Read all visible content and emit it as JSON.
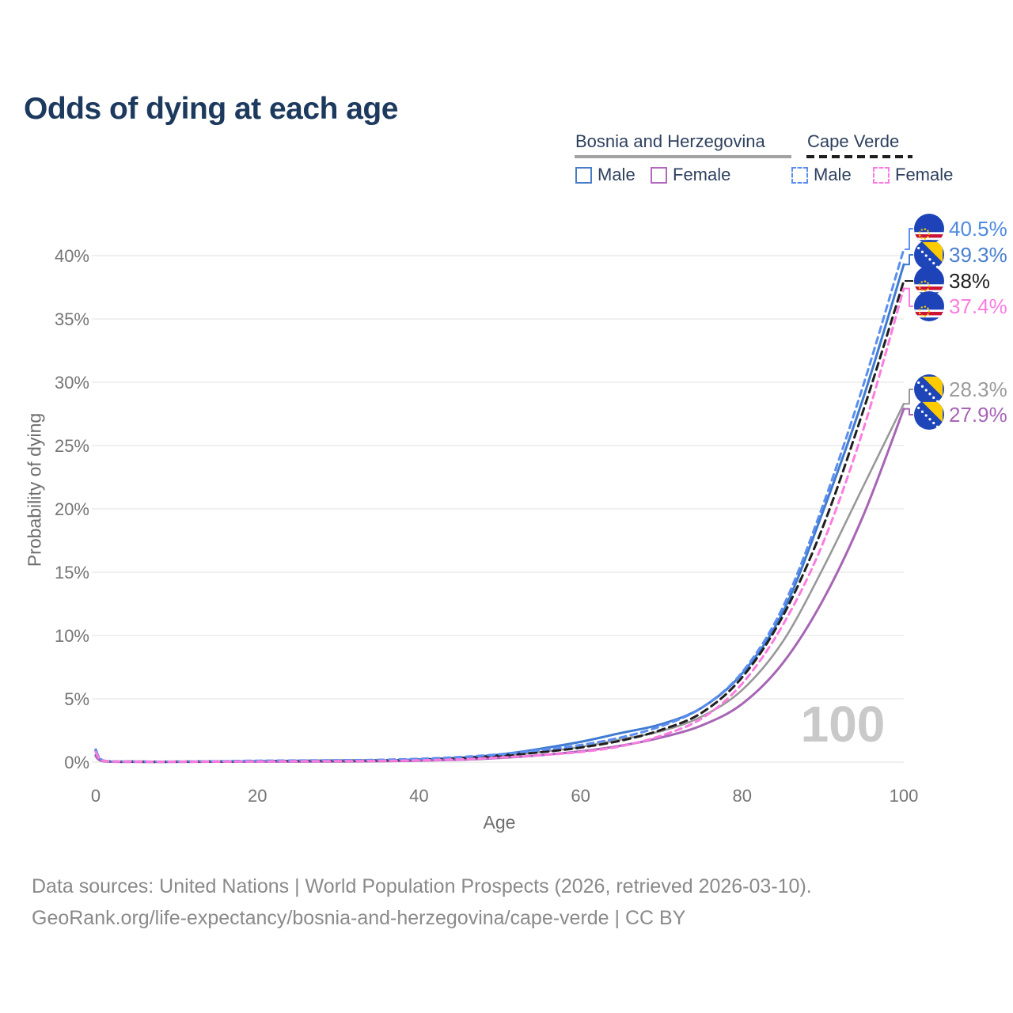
{
  "title": "Odds of dying at each age",
  "legend": {
    "countries": [
      {
        "name": "Bosnia and Herzegovina",
        "line_style": "solid",
        "line_color": "#a3a3a3",
        "items": [
          {
            "label": "Male",
            "swatch_color": "#4a7cc7",
            "swatch_style": "solid"
          },
          {
            "label": "Female",
            "swatch_color": "#b168bd",
            "swatch_style": "solid"
          }
        ]
      },
      {
        "name": "Cape Verde",
        "line_style": "dashed",
        "line_color": "#1f1f1f",
        "items": [
          {
            "label": "Male",
            "swatch_color": "#5b8ef0",
            "swatch_style": "dashed"
          },
          {
            "label": "Female",
            "swatch_color": "#fb7ce0",
            "swatch_style": "dashed"
          }
        ]
      }
    ]
  },
  "watermark": "100",
  "footer": {
    "line1": "Data sources: United Nations | World Population Prospects (2026, retrieved 2026-03-10).",
    "line2": "GeoRank.org/life-expectancy/bosnia-and-herzegovina/cape-verde | CC BY"
  },
  "chart_data": {
    "type": "line",
    "title": "Odds of dying at each age",
    "xlabel": "Age",
    "ylabel": "Probability of dying",
    "x_ticks": [
      0,
      20,
      40,
      60,
      80,
      100
    ],
    "y_tick_values": [
      0,
      5,
      10,
      15,
      20,
      25,
      30,
      35,
      40
    ],
    "y_tick_labels": [
      "0%",
      "5%",
      "10%",
      "15%",
      "20%",
      "25%",
      "30%",
      "35%",
      "40%"
    ],
    "xlim": [
      0,
      100
    ],
    "ylim_pct": [
      0,
      42
    ],
    "grid": "horizontal",
    "legend_position": "top-right",
    "ages": [
      0,
      1,
      5,
      10,
      15,
      20,
      25,
      30,
      35,
      40,
      45,
      50,
      55,
      60,
      65,
      70,
      75,
      80,
      85,
      90,
      95,
      100
    ],
    "series": [
      {
        "id": "bih_all",
        "name": "Bosnia and Herzegovina",
        "sex": "All",
        "color": "#999999",
        "dash": "solid",
        "width": 2.6,
        "values": [
          0.5,
          0.07,
          0.025,
          0.025,
          0.04,
          0.06,
          0.07,
          0.08,
          0.1,
          0.15,
          0.26,
          0.46,
          0.8,
          1.2,
          1.8,
          2.45,
          3.6,
          5.7,
          9.5,
          15.3,
          21.8,
          28.3
        ],
        "end_label": "28.3%"
      },
      {
        "id": "bih_male",
        "name": "Bosnia and Herzegovina",
        "sex": "Male",
        "color": "#3f7bd0",
        "dash": "solid",
        "width": 3,
        "values": [
          0.55,
          0.08,
          0.03,
          0.03,
          0.05,
          0.08,
          0.09,
          0.1,
          0.13,
          0.2,
          0.33,
          0.6,
          1.05,
          1.6,
          2.3,
          3.0,
          4.3,
          7.0,
          11.8,
          19.8,
          28.8,
          39.3
        ],
        "end_label": "39.3%"
      },
      {
        "id": "bih_female",
        "name": "Bosnia and Herzegovina",
        "sex": "Female",
        "color": "#a765b5",
        "dash": "solid",
        "width": 3,
        "values": [
          0.45,
          0.06,
          0.02,
          0.02,
          0.03,
          0.04,
          0.04,
          0.05,
          0.07,
          0.11,
          0.19,
          0.33,
          0.55,
          0.85,
          1.3,
          1.95,
          2.9,
          4.6,
          7.8,
          12.8,
          19.5,
          27.9
        ],
        "end_label": "27.9%"
      },
      {
        "id": "cv_all",
        "name": "Cape Verde",
        "sex": "All",
        "color": "#1f1f1f",
        "dash": "dashed",
        "width": 3,
        "values": [
          0.9,
          0.11,
          0.045,
          0.035,
          0.055,
          0.08,
          0.1,
          0.12,
          0.14,
          0.21,
          0.32,
          0.51,
          0.78,
          1.15,
          1.7,
          2.55,
          3.9,
          6.7,
          11.5,
          18.6,
          27.8,
          38.0
        ],
        "end_label": "38%"
      },
      {
        "id": "cv_male",
        "name": "Cape Verde",
        "sex": "Male",
        "color": "#5b8ef0",
        "dash": "dashed",
        "width": 3,
        "values": [
          1.0,
          0.12,
          0.05,
          0.04,
          0.07,
          0.11,
          0.13,
          0.15,
          0.18,
          0.26,
          0.4,
          0.62,
          0.95,
          1.35,
          1.95,
          2.85,
          4.3,
          7.1,
          12.2,
          20.3,
          29.8,
          40.5
        ],
        "end_label": "40.5%"
      },
      {
        "id": "cv_female",
        "name": "Cape Verde",
        "sex": "Female",
        "color": "#fb7ce0",
        "dash": "dashed",
        "width": 3,
        "values": [
          0.8,
          0.1,
          0.04,
          0.03,
          0.04,
          0.05,
          0.07,
          0.08,
          0.1,
          0.14,
          0.22,
          0.36,
          0.55,
          0.8,
          1.25,
          2.1,
          3.45,
          6.2,
          10.8,
          17.3,
          26.3,
          37.4
        ],
        "end_label": "37.4%"
      }
    ],
    "end_labels": [
      {
        "text": "40.5%",
        "series": "cv_male",
        "flag": "cape-verde",
        "text_color": "#4f8be0"
      },
      {
        "text": "39.3%",
        "series": "bih_male",
        "flag": "bosnia-and-herzegovina",
        "text_color": "#4a7fd0"
      },
      {
        "text": "38%",
        "series": "cv_all",
        "flag": "cape-verde",
        "text_color": "#1f1f1f"
      },
      {
        "text": "37.4%",
        "series": "cv_female",
        "flag": "cape-verde",
        "text_color": "#fb7ce0"
      },
      {
        "text": "28.3%",
        "series": "bih_all",
        "flag": "bosnia-and-herzegovina",
        "text_color": "#9b9b9b"
      },
      {
        "text": "27.9%",
        "series": "bih_female",
        "flag": "bosnia-and-herzegovina",
        "text_color": "#a765b5"
      }
    ]
  }
}
